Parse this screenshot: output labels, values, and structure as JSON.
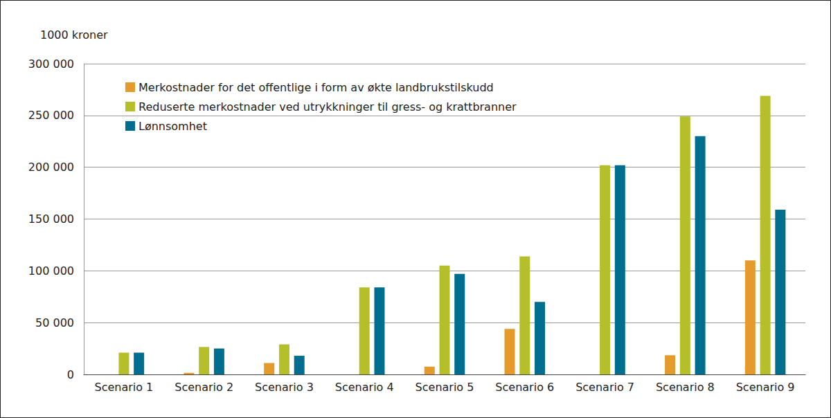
{
  "chart_data": {
    "type": "bar",
    "y_label": "1000 kroner",
    "categories": [
      "Scenario 1",
      "Scenario 2",
      "Scenario 3",
      "Scenario 4",
      "Scenario 5",
      "Scenario 6",
      "Scenario 7",
      "Scenario 8",
      "Scenario 9"
    ],
    "series": [
      {
        "name": "Merkostnader for det offentlige i form av økte landbrukstilskudd",
        "color": "#e49b2c",
        "values": [
          0,
          1500,
          11000,
          0,
          7500,
          44000,
          0,
          18500,
          110000
        ]
      },
      {
        "name": "Reduserte merkostnader ved utrykkninger til gress- og krattbranner",
        "color": "#b5bf2a",
        "values": [
          21000,
          26500,
          29000,
          84000,
          105000,
          114000,
          202000,
          249000,
          269000
        ]
      },
      {
        "name": "Lønnsomhet",
        "color": "#006e8f",
        "values": [
          21000,
          25000,
          18000,
          84000,
          97000,
          70000,
          202000,
          230000,
          159000
        ]
      }
    ],
    "ylim": [
      0,
      300000
    ],
    "yticks": [
      0,
      {
        "value": 50000,
        "label": "50 000"
      },
      {
        "value": 100000,
        "label": "100 000"
      },
      {
        "value": 150000,
        "label": "150 000"
      },
      {
        "value": 200000,
        "label": "200 000"
      },
      {
        "value": 250000,
        "label": "250 000"
      },
      {
        "value": 300000,
        "label": "300 000"
      }
    ],
    "grid": true,
    "legend": "top-left"
  }
}
